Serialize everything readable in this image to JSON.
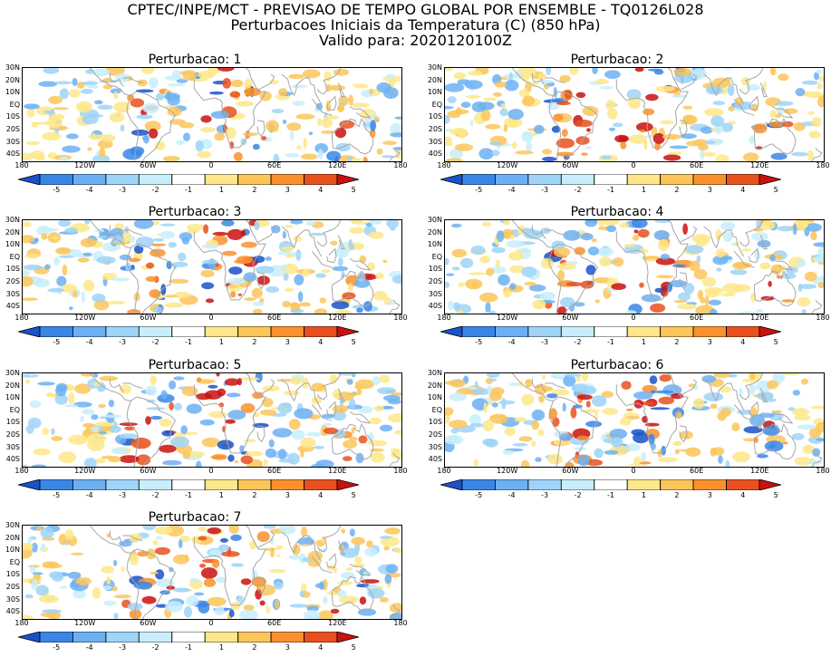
{
  "header": {
    "line1": "CPTEC/INPE/MCT - PREVISAO DE TEMPO GLOBAL POR ENSEMBLE - TQ0126L028",
    "line2": "Perturbacoes Iniciais da Temperatura (C) (850 hPa)",
    "line3": "Valido para: 2020120100Z"
  },
  "map_axes": {
    "lat_labels": [
      "30N",
      "20N",
      "10N",
      "EQ",
      "10S",
      "20S",
      "30S",
      "40S"
    ],
    "lon_labels": [
      "180",
      "120W",
      "60W",
      "0",
      "60E",
      "120E",
      "180"
    ]
  },
  "colorbar": {
    "labels": [
      "-5",
      "-4",
      "-3",
      "-2",
      "-1",
      "1",
      "2",
      "3",
      "4",
      "5"
    ],
    "colors": [
      "#1a52c8",
      "#3a86e6",
      "#6db0f2",
      "#9fd4f8",
      "#c8eefb",
      "#ffffff",
      "#fde78a",
      "#fcc55a",
      "#f9912e",
      "#e8501e",
      "#c9120f"
    ]
  },
  "panels": [
    {
      "title": "Perturbacao: 1"
    },
    {
      "title": "Perturbacao: 2"
    },
    {
      "title": "Perturbacao: 3"
    },
    {
      "title": "Perturbacao: 4"
    },
    {
      "title": "Perturbacao: 5"
    },
    {
      "title": "Perturbacao: 6"
    },
    {
      "title": "Perturbacao: 7"
    }
  ],
  "colors": {
    "land_outline": "#a6a6a6",
    "frame": "#000000"
  }
}
